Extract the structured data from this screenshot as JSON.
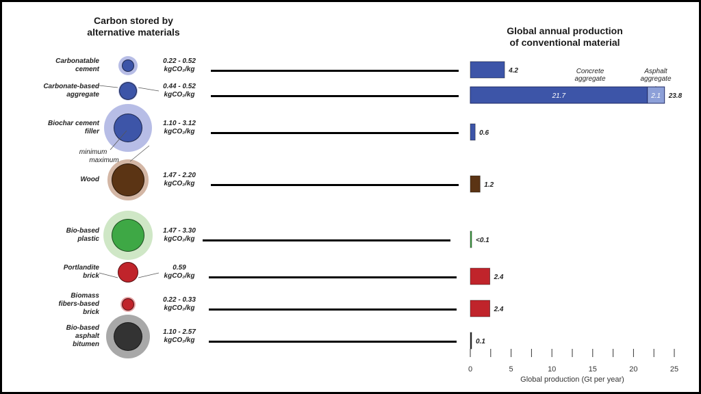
{
  "left_title": "Carbon stored by\nalternative materials",
  "right_title": "Global annual production\nof conventional material",
  "size_legend": {
    "min_label": "minimum",
    "max_label": "maximum"
  },
  "co2_unit": "kgCO₂/kg",
  "colors": {
    "blue": "#3d55a8",
    "blue_light": "#b7bde6",
    "blue_light_segment": "#8da0d8",
    "brown": "#5b3414",
    "brown_light": "#d3b6a4",
    "green": "#3ea845",
    "green_light": "#cfe7c6",
    "red": "#c0242b",
    "red_light": "#e9a7a8",
    "dark": "#333333",
    "dark_light": "#a8a8a8"
  },
  "chart_data": {
    "type": "bar",
    "orientation": "horizontal",
    "xlabel": "Global production (Gt per year)",
    "xlim": [
      0,
      25
    ],
    "xticks": [
      0,
      5,
      10,
      15,
      20,
      25
    ],
    "minor_ticks": [
      2.5,
      7.5,
      12.5,
      17.5,
      22.5
    ],
    "rows": [
      {
        "label": "Carbonatable\ncement",
        "range": "0.22 - 0.52",
        "min": 0.22,
        "max": 0.52,
        "value": 4.2,
        "value_label": "4.2",
        "color": "blue",
        "light": "blue_light"
      },
      {
        "label": "Carbonate-based\naggregate",
        "range": "0.44 - 0.52",
        "min": 0.44,
        "max": 0.52,
        "value": 23.8,
        "value_label": "23.8",
        "segments": [
          {
            "name": "Concrete\naggregate",
            "value": 21.7,
            "label": "21.7"
          },
          {
            "name": "Asphalt\naggregate",
            "value": 2.1,
            "label": "2.1"
          }
        ],
        "color": "blue",
        "light": "blue_light"
      },
      {
        "label": "Biochar cement\nfiller",
        "range": "1.10 - 3.12",
        "min": 1.1,
        "max": 3.12,
        "value": 0.6,
        "value_label": "0.6",
        "color": "blue",
        "light": "blue_light"
      },
      {
        "label": "Wood",
        "range": "1.47 - 2.20",
        "min": 1.47,
        "max": 2.2,
        "value": 1.2,
        "value_label": "1.2",
        "color": "brown",
        "light": "brown_light"
      },
      {
        "label": "Bio-based\nplastic",
        "range": "1.47 - 3.30",
        "min": 1.47,
        "max": 3.3,
        "value": 0.05,
        "value_label": "<0.1",
        "color": "green",
        "light": "green_light"
      },
      {
        "label": "Portlandite\nbrick",
        "range": "0.59",
        "min": 0.59,
        "max": 0.59,
        "value": 2.4,
        "value_label": "2.4",
        "color": "red",
        "light": "red_light"
      },
      {
        "label": "Biomass\nfibers-based\nbrick",
        "range": "0.22 - 0.33",
        "min": 0.22,
        "max": 0.33,
        "value": 2.4,
        "value_label": "2.4",
        "color": "red",
        "light": "red_light"
      },
      {
        "label": "Bio-based\nasphalt\nbitumen",
        "range": "1.10 - 2.57",
        "min": 1.1,
        "max": 2.57,
        "value": 0.1,
        "value_label": "0.1",
        "color": "dark",
        "light": "dark_light"
      }
    ]
  }
}
